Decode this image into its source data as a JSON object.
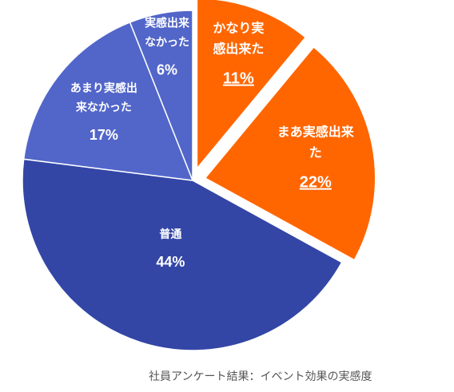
{
  "chart_data": {
    "type": "pie",
    "title": "",
    "slices": [
      {
        "label": [
          "かなり実",
          "感出来た"
        ],
        "value": 11,
        "display": "11%",
        "color": "#FF6600",
        "text_color": "#FFFFFF",
        "exploded": true,
        "underline": true
      },
      {
        "label": [
          "まあ実感出来",
          "た"
        ],
        "value": 22,
        "display": "22%",
        "color": "#FF6600",
        "text_color": "#FFFFFF",
        "exploded": true,
        "underline": true
      },
      {
        "label": [
          "普通"
        ],
        "value": 44,
        "display": "44%",
        "color": "#3346A6",
        "text_color": "#FFFFFF",
        "exploded": false,
        "underline": false
      },
      {
        "label": [
          "あまり実感出",
          "来なかった"
        ],
        "value": 17,
        "display": "17%",
        "color": "#5266C9",
        "text_color": "#FFFFFF",
        "exploded": false,
        "underline": false
      },
      {
        "label": [
          "実感出来",
          "なかった"
        ],
        "value": 6,
        "display": "6%",
        "color": "#5266C9",
        "text_color": "#FFFFFF",
        "exploded": false,
        "underline": false
      }
    ]
  },
  "footer": {
    "source": "社員アンケート結果：イベント効果の実感度"
  }
}
